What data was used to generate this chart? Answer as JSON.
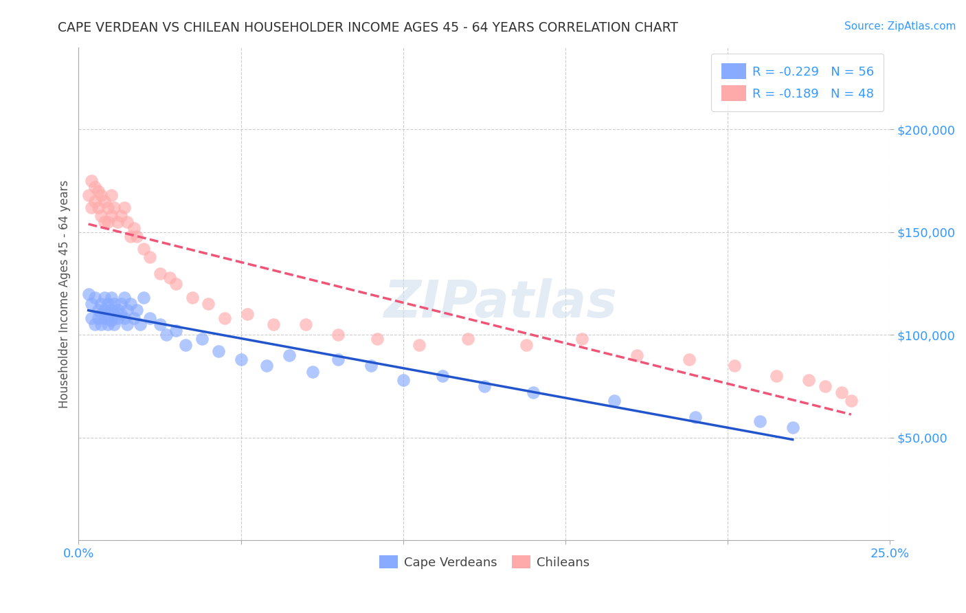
{
  "title": "CAPE VERDEAN VS CHILEAN HOUSEHOLDER INCOME AGES 45 - 64 YEARS CORRELATION CHART",
  "source_text": "Source: ZipAtlas.com",
  "ylabel": "Householder Income Ages 45 - 64 years",
  "xlim": [
    0.0,
    0.25
  ],
  "ylim": [
    0,
    240000
  ],
  "xticks": [
    0.0,
    0.05,
    0.1,
    0.15,
    0.2,
    0.25
  ],
  "xtick_labels": [
    "0.0%",
    "",
    "",
    "",
    "",
    "25.0%"
  ],
  "yticks": [
    0,
    50000,
    100000,
    150000,
    200000
  ],
  "ytick_labels": [
    "",
    "$50,000",
    "$100,000",
    "$150,000",
    "$200,000"
  ],
  "legend_r_blue": "R = -0.229",
  "legend_n_blue": "N = 56",
  "legend_r_pink": "R = -0.189",
  "legend_n_pink": "N = 48",
  "blue_color": "#88aaff",
  "pink_color": "#ffaaaa",
  "line_blue": "#2255cc",
  "line_pink": "#ee5577",
  "title_color": "#333333",
  "axis_label_color": "#555555",
  "tick_color": "#3399ff",
  "watermark_text": "ZIPatlas",
  "cape_verdeans_x": [
    0.003,
    0.004,
    0.004,
    0.005,
    0.005,
    0.006,
    0.006,
    0.007,
    0.007,
    0.007,
    0.008,
    0.008,
    0.008,
    0.009,
    0.009,
    0.009,
    0.01,
    0.01,
    0.01,
    0.011,
    0.011,
    0.011,
    0.012,
    0.012,
    0.013,
    0.013,
    0.014,
    0.014,
    0.015,
    0.015,
    0.016,
    0.017,
    0.018,
    0.019,
    0.02,
    0.022,
    0.025,
    0.027,
    0.03,
    0.033,
    0.038,
    0.043,
    0.05,
    0.058,
    0.065,
    0.072,
    0.08,
    0.09,
    0.1,
    0.112,
    0.125,
    0.14,
    0.165,
    0.19,
    0.21,
    0.22
  ],
  "cape_verdeans_y": [
    120000,
    115000,
    108000,
    118000,
    105000,
    112000,
    108000,
    115000,
    110000,
    105000,
    118000,
    112000,
    108000,
    115000,
    110000,
    105000,
    118000,
    112000,
    107000,
    115000,
    110000,
    105000,
    112000,
    108000,
    115000,
    110000,
    118000,
    108000,
    112000,
    105000,
    115000,
    108000,
    112000,
    105000,
    118000,
    108000,
    105000,
    100000,
    102000,
    95000,
    98000,
    92000,
    88000,
    85000,
    90000,
    82000,
    88000,
    85000,
    78000,
    80000,
    75000,
    72000,
    68000,
    60000,
    58000,
    55000
  ],
  "chileans_x": [
    0.003,
    0.004,
    0.004,
    0.005,
    0.005,
    0.006,
    0.006,
    0.007,
    0.007,
    0.008,
    0.008,
    0.009,
    0.009,
    0.01,
    0.01,
    0.011,
    0.012,
    0.013,
    0.014,
    0.015,
    0.016,
    0.017,
    0.018,
    0.02,
    0.022,
    0.025,
    0.028,
    0.03,
    0.035,
    0.04,
    0.045,
    0.052,
    0.06,
    0.07,
    0.08,
    0.092,
    0.105,
    0.12,
    0.138,
    0.155,
    0.172,
    0.188,
    0.202,
    0.215,
    0.225,
    0.23,
    0.235,
    0.238
  ],
  "chileans_y": [
    168000,
    175000,
    162000,
    172000,
    165000,
    170000,
    162000,
    168000,
    158000,
    165000,
    155000,
    162000,
    155000,
    168000,
    158000,
    162000,
    155000,
    158000,
    162000,
    155000,
    148000,
    152000,
    148000,
    142000,
    138000,
    130000,
    128000,
    125000,
    118000,
    115000,
    108000,
    110000,
    105000,
    105000,
    100000,
    98000,
    95000,
    98000,
    95000,
    98000,
    90000,
    88000,
    85000,
    80000,
    78000,
    75000,
    72000,
    68000
  ]
}
